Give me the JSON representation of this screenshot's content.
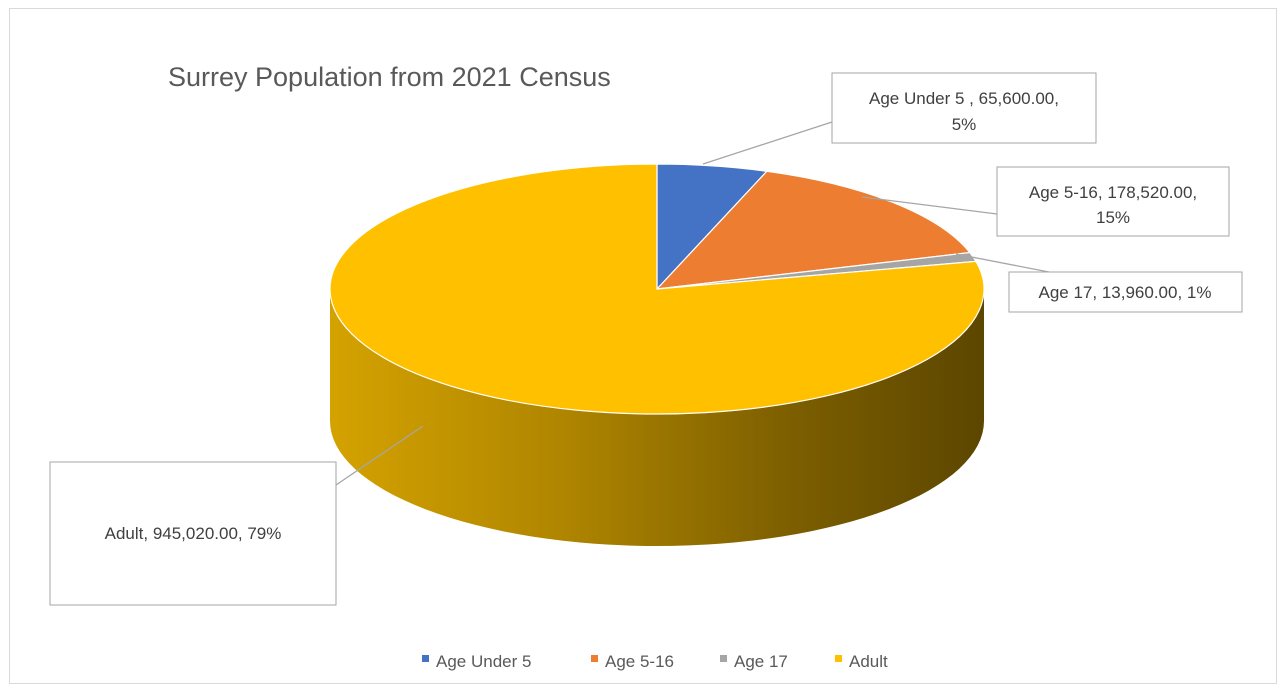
{
  "chart_data": {
    "type": "pie",
    "title": "Surrey Population from 2021 Census",
    "categories": [
      "Age Under 5",
      "Age 5-16",
      "Age 17",
      "Adult"
    ],
    "values": [
      65600,
      178520,
      13960,
      945020
    ],
    "percents": [
      "5%",
      "15%",
      "1%",
      "79%"
    ],
    "colors": [
      "#4472C4",
      "#ED7D31",
      "#A5A5A5",
      "#FFC000"
    ],
    "data_labels": [
      {
        "line1": "Age Under 5 , 65,600.00,",
        "line2": "5%"
      },
      {
        "line1": "Age 5-16, 178,520.00,",
        "line2": "15%"
      },
      {
        "line1": "Age 17, 13,960.00, 1%",
        "line2": ""
      },
      {
        "line1": "Adult, 945,020.00, 79%",
        "line2": ""
      }
    ],
    "legend": [
      "Age Under 5",
      "Age 5-16",
      "Age 17",
      "Adult"
    ],
    "legend_position": "bottom",
    "style": "3d-pie"
  }
}
